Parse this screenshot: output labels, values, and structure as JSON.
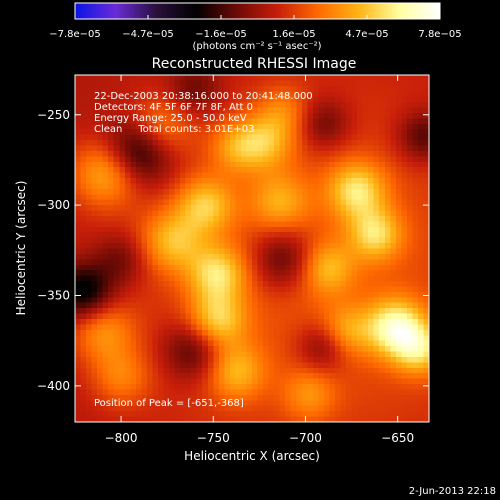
{
  "chart_data": {
    "type": "heatmap",
    "title": "Reconstructed RHESSI Image",
    "xlabel": "Heliocentric X (arcsec)",
    "ylabel": "Heliocentric Y (arcsec)",
    "xlim": [
      -825,
      -633
    ],
    "ylim": [
      -420,
      -228
    ],
    "xticks": [
      -800,
      -750,
      -700,
      -650
    ],
    "xtick_labels": [
      "−800",
      "−750",
      "−700",
      "−650"
    ],
    "yticks": [
      -250,
      -300,
      -350,
      -400
    ],
    "ytick_labels": [
      "−250",
      "−300",
      "−350",
      "−400"
    ],
    "colorbar": {
      "range": [
        -7.8e-05,
        7.8e-05
      ],
      "tick_labels": [
        "−7.8e−05",
        "−4.7e−05",
        "−1.6e−05",
        "1.6e−05",
        "4.7e−05",
        "7.8e−05"
      ],
      "unit_label": "(photons cm⁻² s⁻¹ asec⁻²)",
      "colorscale": [
        "#0a14e6",
        "#6a2bd8",
        "#2a0f3c",
        "#000000",
        "#6e0a05",
        "#c81e0a",
        "#ff6a00",
        "#ffb414",
        "#ffffa0",
        "#ffffff"
      ]
    },
    "annotations": [
      "22-Dec-2003 20:38:16.000 to 20:41:48.000",
      "Detectors: 4F 5F 6F 7F 8F, Att 0",
      "Energy Range: 25.0 - 50.0 keV",
      "Clean     Total counts: 3.01E+03"
    ],
    "peak_label": "Position of Peak = [-651,-368]",
    "peak": [
      -651,
      -368
    ],
    "components": [
      {
        "x": -690,
        "y": -340,
        "a": 0.6,
        "s": 95
      },
      {
        "x": -808,
        "y": -282,
        "a": 1.0,
        "s": 13
      },
      {
        "x": -780,
        "y": -258,
        "a": 0.8,
        "s": 12
      },
      {
        "x": -772,
        "y": -320,
        "a": 0.9,
        "s": 12
      },
      {
        "x": -754,
        "y": -300,
        "a": 0.95,
        "s": 11
      },
      {
        "x": -738,
        "y": -268,
        "a": 0.65,
        "s": 10
      },
      {
        "x": -722,
        "y": -265,
        "a": 0.85,
        "s": 11
      },
      {
        "x": -714,
        "y": -298,
        "a": 0.7,
        "s": 11
      },
      {
        "x": -672,
        "y": -292,
        "a": 1.1,
        "s": 11
      },
      {
        "x": -662,
        "y": -316,
        "a": 1.0,
        "s": 10
      },
      {
        "x": -688,
        "y": -335,
        "a": 0.75,
        "s": 10
      },
      {
        "x": -748,
        "y": -338,
        "a": 1.05,
        "s": 11
      },
      {
        "x": -748,
        "y": -364,
        "a": 1.05,
        "s": 11
      },
      {
        "x": -738,
        "y": -392,
        "a": 0.85,
        "s": 11
      },
      {
        "x": -678,
        "y": -370,
        "a": 0.7,
        "s": 10
      },
      {
        "x": -651,
        "y": -368,
        "a": 1.4,
        "s": 11
      },
      {
        "x": -638,
        "y": -380,
        "a": 1.0,
        "s": 10
      },
      {
        "x": -810,
        "y": -370,
        "a": 0.75,
        "s": 12
      },
      {
        "x": -800,
        "y": -395,
        "a": 0.6,
        "s": 11
      },
      {
        "x": -698,
        "y": -405,
        "a": 0.55,
        "s": 10
      },
      {
        "x": -712,
        "y": -248,
        "a": 0.5,
        "s": 10
      },
      {
        "x": -790,
        "y": -270,
        "a": -1.2,
        "s": 13
      },
      {
        "x": -712,
        "y": -330,
        "a": -0.8,
        "s": 12
      },
      {
        "x": -760,
        "y": -380,
        "a": -0.8,
        "s": 12
      },
      {
        "x": -820,
        "y": -348,
        "a": -1.1,
        "s": 11
      },
      {
        "x": -690,
        "y": -255,
        "a": -0.6,
        "s": 10
      },
      {
        "x": -636,
        "y": -262,
        "a": -0.7,
        "s": 10
      },
      {
        "x": -690,
        "y": -378,
        "a": -0.7,
        "s": 10
      },
      {
        "x": -760,
        "y": -236,
        "a": -0.5,
        "s": 10
      },
      {
        "x": -800,
        "y": -330,
        "a": -0.5,
        "s": 10
      }
    ]
  },
  "footer": {
    "timestamp": "2-Jun-2013 22:18"
  }
}
